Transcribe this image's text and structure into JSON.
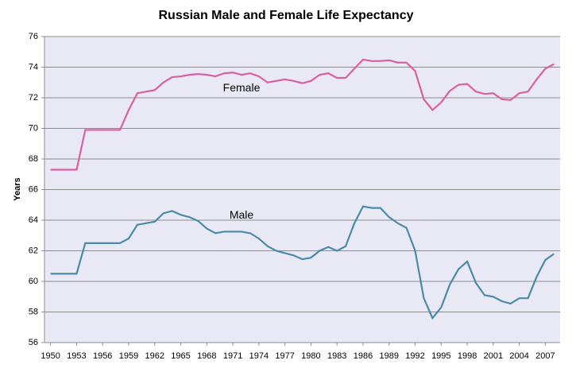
{
  "chart_data": {
    "type": "line",
    "title": "Russian Male and Female Life Expectancy",
    "y_label": "Years",
    "x": [
      1950,
      1951,
      1952,
      1953,
      1954,
      1955,
      1956,
      1957,
      1958,
      1959,
      1960,
      1961,
      1962,
      1963,
      1964,
      1965,
      1966,
      1967,
      1968,
      1969,
      1970,
      1971,
      1972,
      1973,
      1974,
      1975,
      1976,
      1977,
      1978,
      1979,
      1980,
      1981,
      1982,
      1983,
      1984,
      1985,
      1986,
      1987,
      1988,
      1989,
      1990,
      1991,
      1992,
      1993,
      1994,
      1995,
      1996,
      1997,
      1998,
      1999,
      2000,
      2001,
      2002,
      2003,
      2004,
      2005,
      2006,
      2007,
      2008
    ],
    "series": [
      {
        "name": "Female",
        "color": "#d9609e",
        "values": [
          67.3,
          67.3,
          67.3,
          67.3,
          69.9,
          69.9,
          69.9,
          69.9,
          69.9,
          71.2,
          72.3,
          72.4,
          72.5,
          73.0,
          73.35,
          73.4,
          73.5,
          73.55,
          73.5,
          73.4,
          73.6,
          73.65,
          73.5,
          73.6,
          73.4,
          73.0,
          73.1,
          73.2,
          73.1,
          72.95,
          73.1,
          73.5,
          73.6,
          73.3,
          73.3,
          73.9,
          74.5,
          74.4,
          74.4,
          74.45,
          74.3,
          74.3,
          73.75,
          71.9,
          71.2,
          71.7,
          72.45,
          72.85,
          72.9,
          72.4,
          72.25,
          72.3,
          71.9,
          71.85,
          72.3,
          72.4,
          73.2,
          73.9,
          74.2
        ]
      },
      {
        "name": "Male",
        "color": "#4a8aa8",
        "values": [
          60.5,
          60.5,
          60.5,
          60.5,
          62.5,
          62.5,
          62.5,
          62.5,
          62.5,
          62.8,
          63.7,
          63.8,
          63.9,
          64.45,
          64.6,
          64.35,
          64.2,
          63.95,
          63.45,
          63.15,
          63.25,
          63.25,
          63.25,
          63.15,
          62.8,
          62.3,
          62.0,
          61.85,
          61.7,
          61.45,
          61.55,
          62.0,
          62.25,
          62.0,
          62.3,
          63.8,
          64.9,
          64.8,
          64.8,
          64.2,
          63.8,
          63.5,
          62.0,
          58.9,
          57.6,
          58.3,
          59.8,
          60.8,
          61.3,
          59.9,
          59.1,
          59.0,
          58.7,
          58.55,
          58.9,
          58.9,
          60.3,
          61.4,
          61.8
        ]
      }
    ],
    "xlim": [
      1949.3,
      2008.7
    ],
    "xticks": [
      1950,
      1953,
      1956,
      1959,
      1962,
      1965,
      1968,
      1971,
      1974,
      1977,
      1980,
      1983,
      1986,
      1989,
      1992,
      1995,
      1998,
      2001,
      2004,
      2007
    ],
    "ylim": [
      56,
      76
    ],
    "yticks": [
      56,
      58,
      60,
      62,
      64,
      66,
      68,
      70,
      72,
      74,
      76
    ],
    "grid": true
  }
}
